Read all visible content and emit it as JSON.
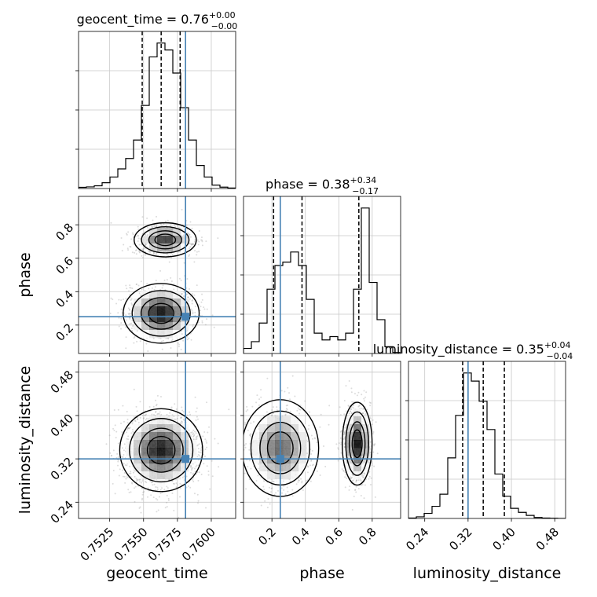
{
  "chart_data": {
    "type": "corner",
    "parameters": [
      "geocent_time",
      "phase",
      "luminosity_distance"
    ],
    "truth": {
      "geocent_time": 0.7581,
      "phase": 0.25,
      "luminosity_distance": 0.32
    },
    "titles": {
      "geocent_time": {
        "name": "geocent_time",
        "median": "0.76",
        "plus": "+0.00",
        "minus": "−0.00"
      },
      "phase": {
        "name": "phase",
        "median": "0.38",
        "plus": "+0.34",
        "minus": "−0.17"
      },
      "luminosity_distance": {
        "name": "luminosity_distance",
        "median": "0.35",
        "plus": "+0.04",
        "minus": "−0.04"
      }
    },
    "axes": {
      "geocent_time": {
        "range": [
          0.7502,
          0.7618
        ],
        "ticks": [
          0.7525,
          0.755,
          0.7575,
          0.76
        ],
        "tick_labels": [
          "0.7525",
          "0.7550",
          "0.7575",
          "0.7600"
        ],
        "label": "geocent_time"
      },
      "phase": {
        "range": [
          0.03,
          0.97
        ],
        "ticks": [
          0.2,
          0.4,
          0.6,
          0.8
        ],
        "tick_labels": [
          "0.2",
          "0.4",
          "0.6",
          "0.8"
        ],
        "label": "phase"
      },
      "luminosity_distance": {
        "range": [
          0.21,
          0.5
        ],
        "ticks": [
          0.24,
          0.32,
          0.4,
          0.48
        ],
        "tick_labels": [
          "0.24",
          "0.32",
          "0.40",
          "0.48"
        ],
        "label": "luminosity_distance"
      }
    },
    "histograms": {
      "geocent_time": {
        "bins": [
          0.7502,
          0.75078,
          0.75136,
          0.75194,
          0.75252,
          0.7531,
          0.75368,
          0.75426,
          0.75484,
          0.75542,
          0.756,
          0.75658,
          0.75716,
          0.75774,
          0.75832,
          0.7589,
          0.75948,
          0.76006,
          0.76064,
          0.76122,
          0.7618
        ],
        "counts": [
          0.5,
          0.7,
          1.2,
          2.5,
          5,
          8.5,
          13,
          21,
          36,
          57,
          63,
          60,
          50,
          35,
          21,
          10,
          5,
          1.5,
          0.6,
          0.2
        ],
        "quantiles": [
          0.7549,
          0.7563,
          0.7577
        ]
      },
      "phase": {
        "bins": [
          0.03,
          0.077,
          0.124,
          0.171,
          0.218,
          0.265,
          0.312,
          0.359,
          0.406,
          0.453,
          0.5,
          0.547,
          0.594,
          0.641,
          0.688,
          0.735,
          0.782,
          0.829,
          0.876,
          0.923,
          0.97
        ],
        "counts": [
          1.5,
          3.5,
          9,
          19,
          26,
          27,
          30,
          26,
          16,
          6,
          4,
          5,
          4,
          6,
          19,
          43,
          21,
          10,
          2,
          0.3
        ],
        "quantiles": [
          0.21,
          0.38,
          0.72
        ]
      },
      "luminosity_distance": {
        "bins": [
          0.21,
          0.2245,
          0.239,
          0.2535,
          0.268,
          0.2825,
          0.297,
          0.3115,
          0.326,
          0.3405,
          0.355,
          0.3695,
          0.384,
          0.3985,
          0.413,
          0.4275,
          0.442,
          0.4565,
          0.471,
          0.4855,
          0.5
        ],
        "counts": [
          0.2,
          0.8,
          2.5,
          6,
          12,
          30,
          51,
          72,
          68,
          58,
          44,
          22,
          11,
          5,
          3,
          1.5,
          0.5,
          0.2,
          0.1,
          0.0
        ],
        "quantiles": [
          0.31,
          0.348,
          0.387
        ]
      }
    },
    "density_modes": {
      "geocent_time__phase": [
        {
          "x": 0.7566,
          "y": 0.71,
          "sx": 0.0009,
          "sy": 0.04,
          "w": 1.0
        },
        {
          "x": 0.7563,
          "y": 0.27,
          "sx": 0.0011,
          "sy": 0.07,
          "w": 1.2
        }
      ],
      "geocent_time__luminosity_distance": [
        {
          "x": 0.7563,
          "y": 0.336,
          "sx": 0.0012,
          "sy": 0.03,
          "w": 1.0
        }
      ],
      "phase__luminosity_distance": [
        {
          "x": 0.25,
          "y": 0.34,
          "sx": 0.09,
          "sy": 0.035,
          "w": 0.7
        },
        {
          "x": 0.71,
          "y": 0.348,
          "sx": 0.035,
          "sy": 0.03,
          "w": 1.0
        }
      ]
    },
    "grid": true
  },
  "colors": {
    "truth": "#4682b4",
    "hist": "#000000",
    "grid": "#c8c8c8",
    "points": "#9a9a9a"
  }
}
